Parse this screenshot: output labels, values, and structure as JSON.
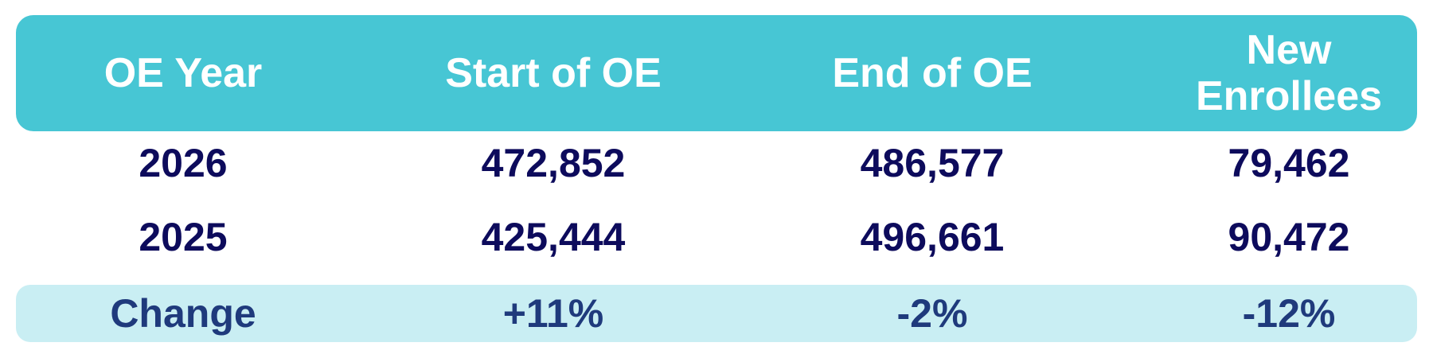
{
  "table": {
    "header": [
      "OE Year",
      "Start of OE",
      "End of OE",
      "New Enrollees"
    ],
    "rows": [
      [
        "2026",
        "472,852",
        "486,577",
        "79,462"
      ],
      [
        "2025",
        "425,444",
        "496,661",
        "90,472"
      ]
    ],
    "footer": [
      "Change",
      "+11%",
      "-2%",
      "-12%"
    ]
  }
}
